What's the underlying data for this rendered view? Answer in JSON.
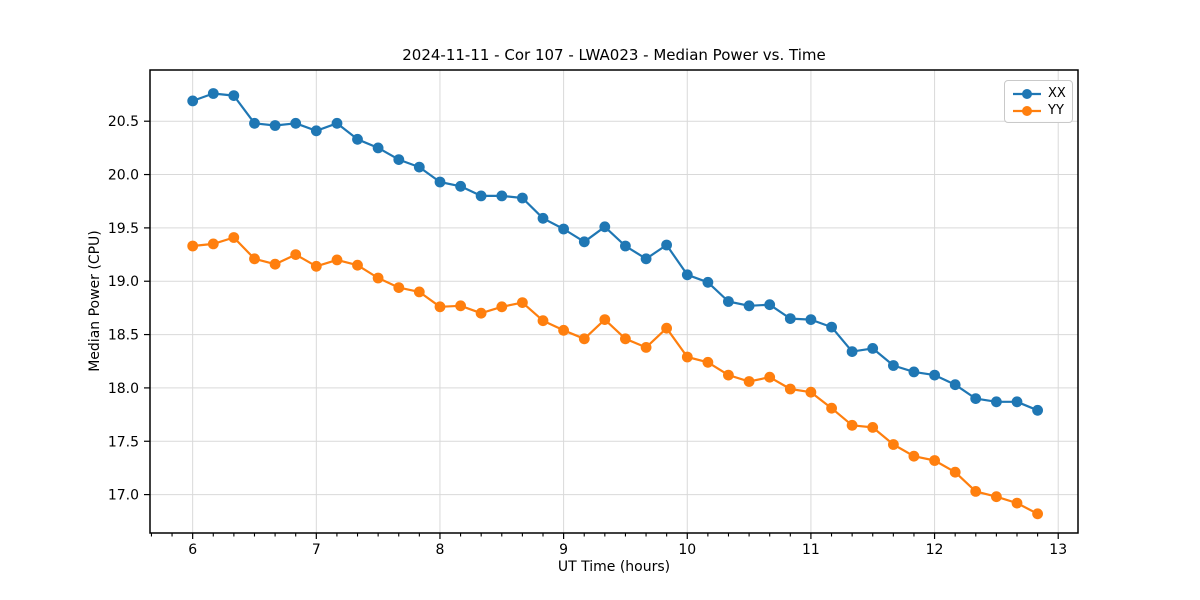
{
  "chart_data": {
    "type": "line",
    "title": "2024-11-11 - Cor 107 - LWA023 - Median Power vs. Time",
    "xlabel": "UT Time (hours)",
    "ylabel": "Median Power (CPU)",
    "xlim": [
      5.655,
      13.16
    ],
    "ylim": [
      16.64,
      20.98
    ],
    "xticks": [
      6,
      7,
      8,
      9,
      10,
      11,
      12,
      13
    ],
    "yticks": [
      17.0,
      17.5,
      18.0,
      18.5,
      19.0,
      19.5,
      20.0,
      20.5
    ],
    "x_minor_tick_step": 0.166667,
    "grid": true,
    "legend_position": "upper right",
    "x": [
      6.0,
      6.167,
      6.333,
      6.5,
      6.667,
      6.833,
      7.0,
      7.167,
      7.333,
      7.5,
      7.667,
      7.833,
      8.0,
      8.167,
      8.333,
      8.5,
      8.667,
      8.833,
      9.0,
      9.167,
      9.333,
      9.5,
      9.667,
      9.833,
      10.0,
      10.167,
      10.333,
      10.5,
      10.667,
      10.833,
      11.0,
      11.167,
      11.333,
      11.5,
      11.667,
      11.833,
      12.0,
      12.167,
      12.333,
      12.5,
      12.667,
      12.833
    ],
    "series": [
      {
        "name": "XX",
        "color": "#1f77b4",
        "values": [
          20.69,
          20.76,
          20.74,
          20.48,
          20.46,
          20.48,
          20.41,
          20.48,
          20.33,
          20.25,
          20.14,
          20.07,
          19.93,
          19.89,
          19.8,
          19.8,
          19.78,
          19.59,
          19.49,
          19.37,
          19.51,
          19.33,
          19.21,
          19.34,
          19.06,
          18.99,
          18.81,
          18.77,
          18.78,
          18.65,
          18.64,
          18.57,
          18.34,
          18.37,
          18.21,
          18.15,
          18.12,
          18.03,
          17.9,
          17.87,
          17.87,
          17.79
        ]
      },
      {
        "name": "YY",
        "color": "#ff7f0e",
        "values": [
          19.33,
          19.35,
          19.41,
          19.21,
          19.16,
          19.25,
          19.14,
          19.2,
          19.15,
          19.03,
          18.94,
          18.9,
          18.76,
          18.77,
          18.7,
          18.76,
          18.8,
          18.63,
          18.54,
          18.46,
          18.64,
          18.46,
          18.38,
          18.56,
          18.29,
          18.24,
          18.12,
          18.06,
          18.1,
          17.99,
          17.96,
          17.81,
          17.65,
          17.63,
          17.47,
          17.36,
          17.32,
          17.21,
          17.03,
          16.98,
          16.92,
          16.82
        ]
      }
    ]
  },
  "colors": {
    "grid": "#d9d9d9",
    "spine": "#000000",
    "tick": "#000000",
    "text": "#000000",
    "background": "#ffffff"
  }
}
